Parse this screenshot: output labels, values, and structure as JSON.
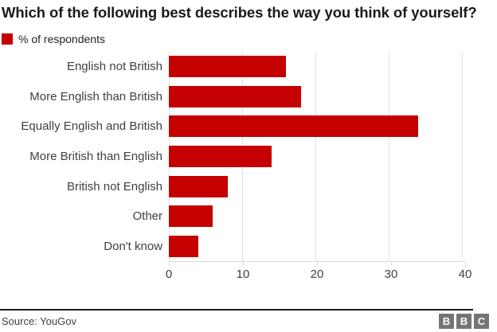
{
  "title": "Which of the following best describes the way you think of yourself?",
  "legend": {
    "label": "% of respondents",
    "swatch_color": "#c40000"
  },
  "chart_data": {
    "type": "bar",
    "orientation": "horizontal",
    "title": "Which of the following best describes the way you think of yourself?",
    "series_name": "% of respondents",
    "categories": [
      "English not British",
      "More English than British",
      "Equally English and British",
      "More British than English",
      "British not English",
      "Other",
      "Don't know"
    ],
    "values": [
      16,
      18,
      34,
      14,
      8,
      6,
      4
    ],
    "xlim": [
      0,
      40
    ],
    "xticks": [
      0,
      10,
      20,
      30,
      40
    ],
    "bar_color": "#c40000",
    "gridline_color": "#e0e0e0",
    "grid": true,
    "legend_position": "top-left"
  },
  "footer": {
    "source": "Source: YouGov",
    "logo_letters": [
      "B",
      "B",
      "C"
    ]
  },
  "colors": {
    "accent_red": "#c40000",
    "title_text": "#1a1a1a",
    "axis_text": "#404040",
    "gridline": "#e0e0e0",
    "logo_gray": "#757575"
  }
}
